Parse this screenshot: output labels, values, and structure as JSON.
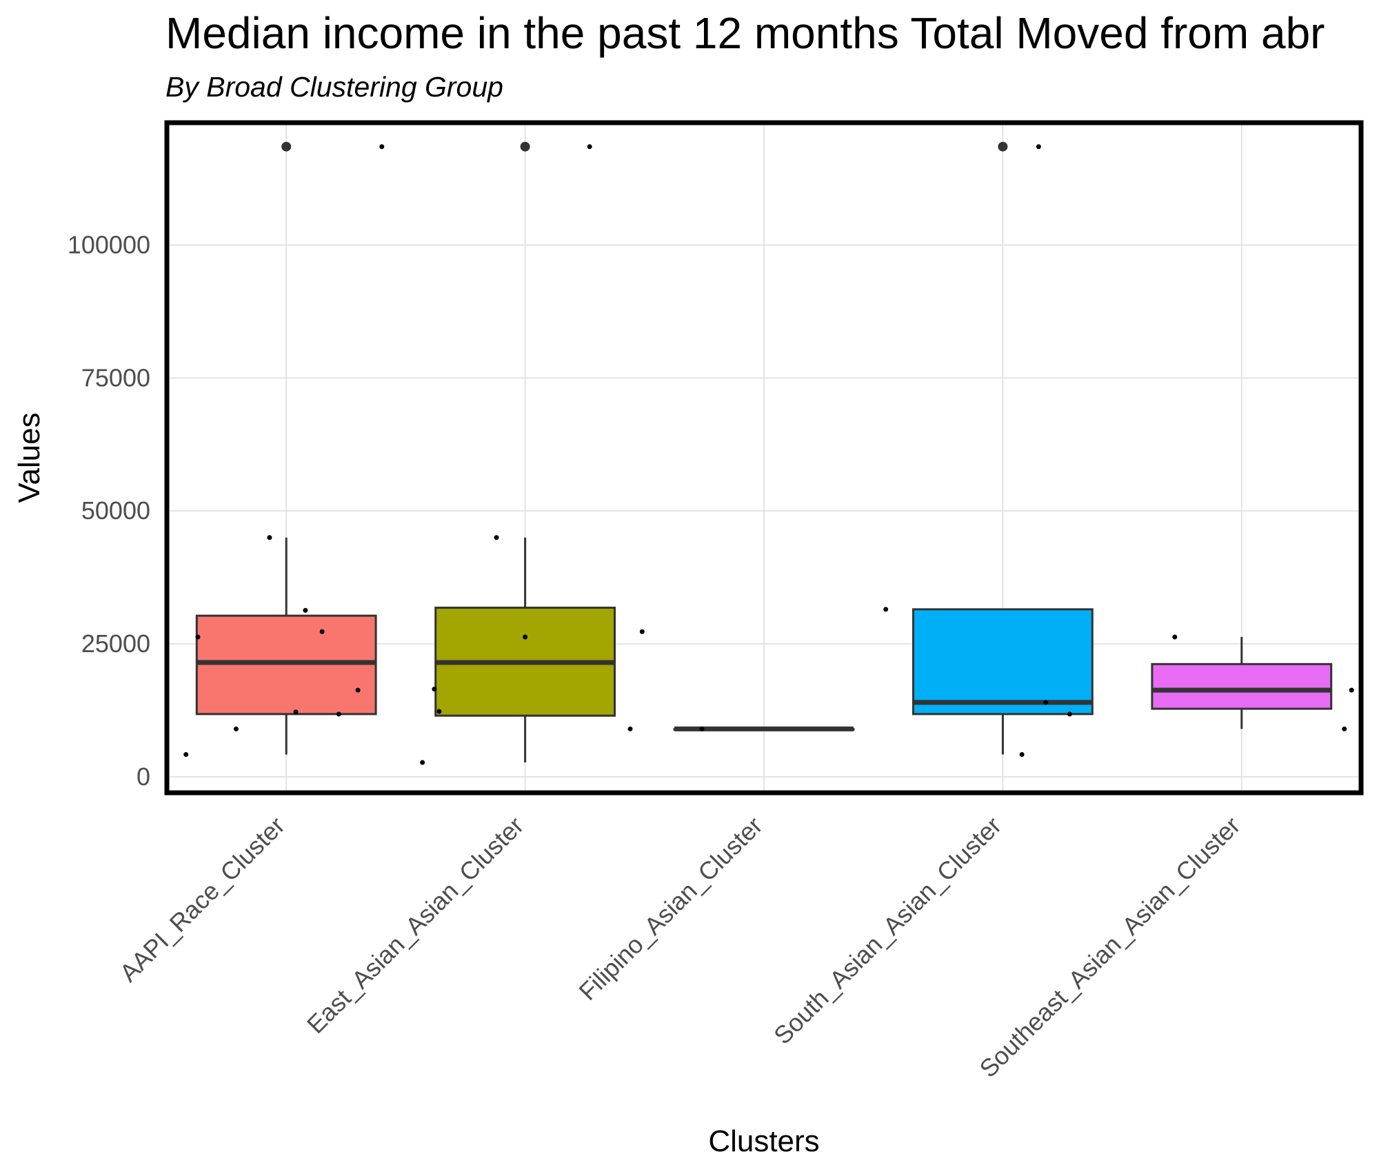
{
  "chart_data": {
    "type": "box",
    "title": "Median income in the past 12 months Total Moved from abr",
    "subtitle": "By Broad Clustering Group",
    "xlabel": "Clusters",
    "ylabel": "Values",
    "ylim": [
      -3000,
      123000
    ],
    "yticks": [
      0,
      25000,
      50000,
      75000,
      100000
    ],
    "grid": true,
    "legend": "none",
    "categories": [
      "AAPI_Race_Cluster",
      "East_Asian_Asian_Cluster",
      "Filipino_Asian_Cluster",
      "South_Asian_Asian_Cluster",
      "Southeast_Asian_Asian_Cluster"
    ],
    "series": [
      {
        "category": "AAPI_Race_Cluster",
        "color": "#F8766D",
        "q1": 11800,
        "median": 21500,
        "q3": 30300,
        "whisker_low": 4200,
        "whisker_high": 45000,
        "outliers": [
          118500
        ],
        "points": [
          [
            -0.42,
            4200
          ],
          [
            -0.21,
            9000
          ],
          [
            -0.37,
            26300
          ],
          [
            -0.07,
            45000
          ],
          [
            0.04,
            12200
          ],
          [
            0.08,
            31300
          ],
          [
            0.15,
            27300
          ],
          [
            0.22,
            11800
          ],
          [
            0.3,
            16300
          ],
          [
            0.4,
            118500
          ]
        ]
      },
      {
        "category": "East_Asian_Asian_Cluster",
        "color": "#A3A500",
        "q1": 11500,
        "median": 21500,
        "q3": 31800,
        "whisker_low": 2700,
        "whisker_high": 45000,
        "outliers": [
          118500
        ],
        "points": [
          [
            -0.43,
            2700
          ],
          [
            -0.38,
            16500
          ],
          [
            -0.36,
            12300
          ],
          [
            -0.12,
            45000
          ],
          [
            0.0,
            26300
          ],
          [
            0.27,
            118500
          ],
          [
            0.44,
            9000
          ],
          [
            0.49,
            27300
          ]
        ]
      },
      {
        "category": "Filipino_Asian_Cluster",
        "color": "#00BF7D",
        "q1": 9000,
        "median": 9000,
        "q3": 9000,
        "whisker_low": 9000,
        "whisker_high": 9000,
        "outliers": [],
        "points": [
          [
            -0.26,
            9000
          ]
        ]
      },
      {
        "category": "South_Asian_Asian_Cluster",
        "color": "#00B0F6",
        "q1": 11800,
        "median": 14000,
        "q3": 31500,
        "whisker_low": 4200,
        "whisker_high": 31500,
        "outliers": [
          118500
        ],
        "points": [
          [
            -0.49,
            31500
          ],
          [
            0.08,
            4200
          ],
          [
            0.18,
            14000
          ],
          [
            0.28,
            11800
          ],
          [
            0.15,
            118500
          ]
        ]
      },
      {
        "category": "Southeast_Asian_Asian_Cluster",
        "color": "#E76BF3",
        "q1": 12800,
        "median": 16300,
        "q3": 21200,
        "whisker_low": 9000,
        "whisker_high": 26300,
        "outliers": [],
        "points": [
          [
            -0.28,
            26300
          ],
          [
            0.43,
            9000
          ],
          [
            0.46,
            16300
          ]
        ]
      }
    ]
  }
}
